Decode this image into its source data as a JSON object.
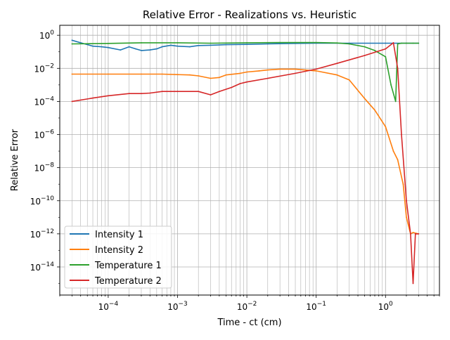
{
  "chart_data": {
    "type": "line",
    "title": "Relative Error - Realizations vs. Heuristic",
    "xlabel": "Time - ct (cm)",
    "ylabel": "Relative Error",
    "x_scale": "log",
    "y_scale": "log",
    "xlim": [
      2e-05,
      6
    ],
    "ylim": [
      2e-16,
      4
    ],
    "grid": true,
    "legend_position": "lower-left",
    "x_major_ticks": [
      {
        "value": 0.0001,
        "base": "10",
        "exp": "−4"
      },
      {
        "value": 0.001,
        "base": "10",
        "exp": "−3"
      },
      {
        "value": 0.01,
        "base": "10",
        "exp": "−2"
      },
      {
        "value": 0.1,
        "base": "10",
        "exp": "−1"
      },
      {
        "value": 1,
        "base": "10",
        "exp": "0"
      }
    ],
    "y_major_ticks": [
      {
        "value": 1e-14,
        "base": "10",
        "exp": "−14"
      },
      {
        "value": 1e-12,
        "base": "10",
        "exp": "−12"
      },
      {
        "value": 1e-10,
        "base": "10",
        "exp": "−10"
      },
      {
        "value": 1e-08,
        "base": "10",
        "exp": "−8"
      },
      {
        "value": 1e-06,
        "base": "10",
        "exp": "−6"
      },
      {
        "value": 0.0001,
        "base": "10",
        "exp": "−4"
      },
      {
        "value": 0.01,
        "base": "10",
        "exp": "−2"
      },
      {
        "value": 1,
        "base": "10",
        "exp": "0"
      }
    ],
    "series": [
      {
        "name": "Intensity 1",
        "color": "#1f77b4",
        "x": [
          3e-05,
          4e-05,
          6e-05,
          8e-05,
          0.0001,
          0.00015,
          0.0002,
          0.00025,
          0.0003,
          0.0004,
          0.0005,
          0.0006,
          0.0008,
          0.001,
          0.0015,
          0.002,
          0.003,
          0.005,
          0.01,
          0.02,
          0.05,
          0.1,
          0.3,
          1,
          2,
          3
        ],
        "y": [
          0.5,
          0.35,
          0.22,
          0.2,
          0.18,
          0.13,
          0.2,
          0.15,
          0.12,
          0.13,
          0.15,
          0.2,
          0.25,
          0.22,
          0.2,
          0.24,
          0.25,
          0.27,
          0.28,
          0.3,
          0.32,
          0.33,
          0.33,
          0.33,
          0.33,
          0.33
        ]
      },
      {
        "name": "Intensity 2",
        "color": "#ff7f0e",
        "x": [
          3e-05,
          0.0001,
          0.0003,
          0.0006,
          0.001,
          0.0015,
          0.002,
          0.003,
          0.004,
          0.005,
          0.008,
          0.01,
          0.015,
          0.02,
          0.03,
          0.05,
          0.1,
          0.2,
          0.3,
          0.5,
          0.7,
          1,
          1.3,
          1.5,
          1.8,
          2,
          2.3,
          2.5,
          3
        ],
        "y": [
          0.0045,
          0.0045,
          0.0045,
          0.0045,
          0.0042,
          0.004,
          0.0035,
          0.0025,
          0.0028,
          0.004,
          0.005,
          0.006,
          0.007,
          0.008,
          0.009,
          0.009,
          0.007,
          0.004,
          0.002,
          0.00015,
          3e-05,
          3e-06,
          1e-07,
          3e-08,
          1e-09,
          1e-11,
          1e-12,
          1.2e-12,
          1e-12
        ]
      },
      {
        "name": "Temperature 1",
        "color": "#2ca02c",
        "x": [
          3e-05,
          0.0001,
          0.0003,
          0.001,
          0.003,
          0.01,
          0.03,
          0.1,
          0.2,
          0.3,
          0.5,
          0.7,
          1,
          1.2,
          1.4,
          1.5,
          1.7,
          2,
          2.5,
          3
        ],
        "y": [
          0.3,
          0.32,
          0.35,
          0.35,
          0.33,
          0.35,
          0.36,
          0.36,
          0.34,
          0.3,
          0.2,
          0.12,
          0.05,
          0.001,
          0.0001,
          0.3,
          0.33,
          0.33,
          0.33,
          0.33
        ]
      },
      {
        "name": "Temperature 2",
        "color": "#d62728",
        "x": [
          3e-05,
          6e-05,
          0.0001,
          0.0002,
          0.0003,
          0.0004,
          0.0006,
          0.001,
          0.002,
          0.003,
          0.004,
          0.006,
          0.008,
          0.01,
          0.02,
          0.05,
          0.1,
          0.2,
          0.5,
          1,
          1.3,
          1.5,
          1.7,
          2,
          2.3,
          2.5,
          2.7,
          3
        ],
        "y": [
          0.0001,
          0.00016,
          0.00022,
          0.0003,
          0.0003,
          0.00032,
          0.0004,
          0.0004,
          0.0004,
          0.00025,
          0.0004,
          0.0007,
          0.0012,
          0.0015,
          0.0025,
          0.005,
          0.009,
          0.02,
          0.06,
          0.15,
          0.35,
          0.01,
          1e-06,
          1e-10,
          1e-12,
          1e-15,
          1e-12,
          1e-12
        ]
      }
    ]
  }
}
